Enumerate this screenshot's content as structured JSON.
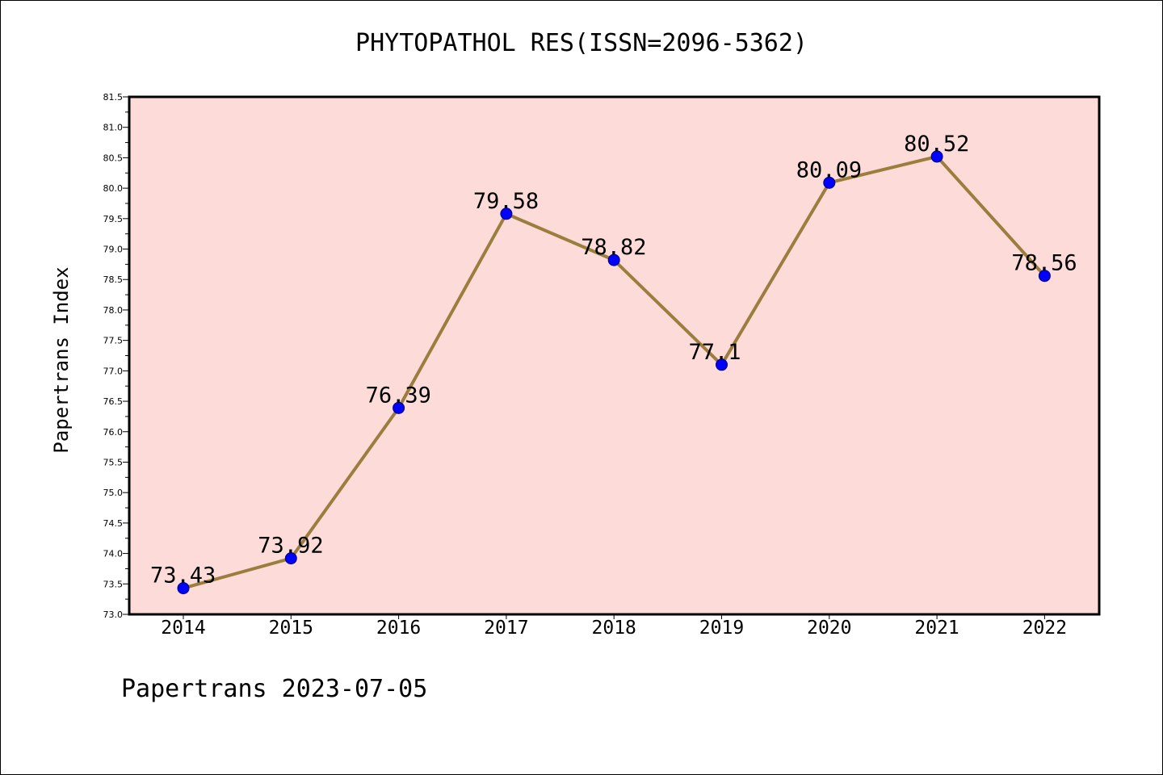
{
  "chart_data": {
    "type": "line",
    "title": "PHYTOPATHOL RES(ISSN=2096-5362)",
    "xlabel": "",
    "ylabel": "Papertrans Index",
    "categories": [
      "2014",
      "2015",
      "2016",
      "2017",
      "2018",
      "2019",
      "2020",
      "2021",
      "2022"
    ],
    "values": [
      73.43,
      73.92,
      76.39,
      79.58,
      78.82,
      77.1,
      80.09,
      80.52,
      78.56
    ],
    "data_labels": [
      "73.43",
      "73.92",
      "76.39",
      "79.58",
      "78.82",
      "77.1",
      "80.09",
      "80.52",
      "78.56"
    ],
    "ylim": [
      73.0,
      81.5
    ],
    "yticks": [
      "73.0",
      "73.5",
      "74.0",
      "74.5",
      "75.0",
      "75.5",
      "76.0",
      "76.5",
      "77.0",
      "77.5",
      "78.0",
      "78.5",
      "79.0",
      "79.5",
      "80.0",
      "80.5",
      "81.0",
      "81.5"
    ],
    "grid": false,
    "colors": {
      "background": "#fddbd8",
      "line": "#9b7e3e",
      "marker": "#0000ff",
      "marker_edge": "#000080"
    }
  },
  "footer": "Papertrans 2023-07-05"
}
